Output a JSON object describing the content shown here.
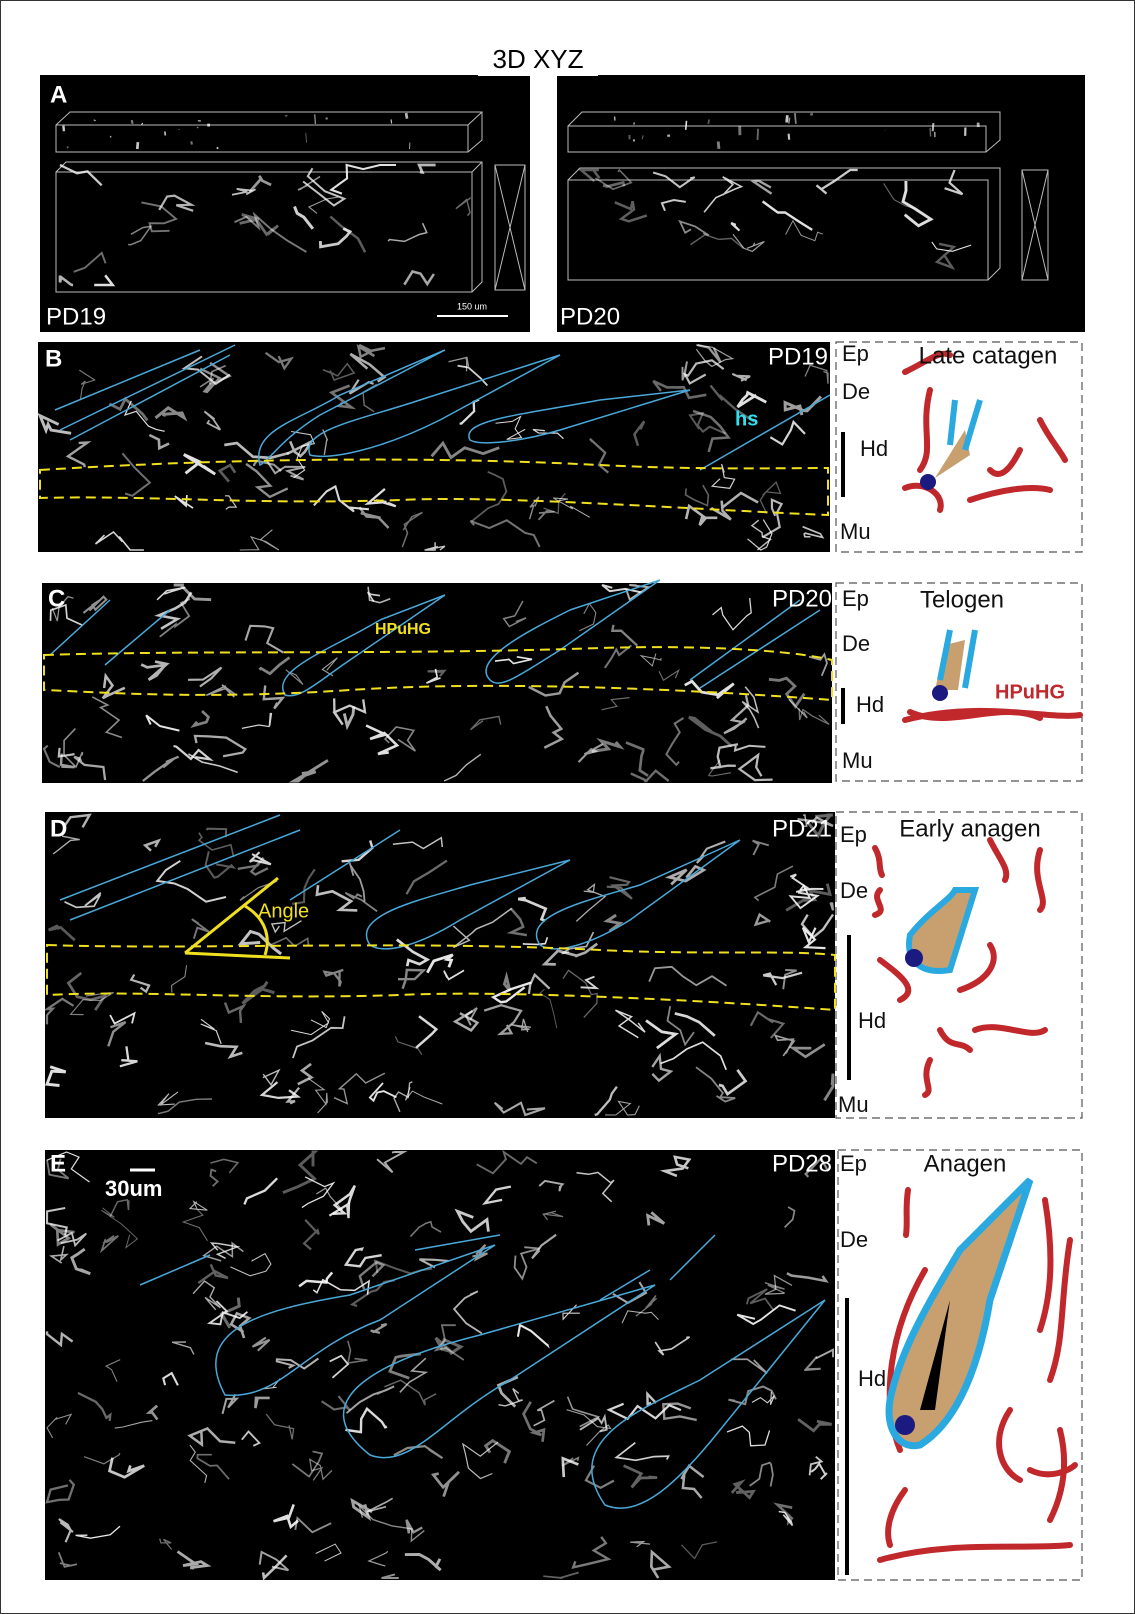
{
  "header": {
    "title": "3D XYZ"
  },
  "panels": [
    {
      "letter": "A",
      "left_label": "PD19",
      "scale_bar": "150 um",
      "right_label": "PD20"
    },
    {
      "letter": "B",
      "image_label": "PD19",
      "annotation": "hs",
      "stage": "Late catagen",
      "layers": [
        "Ep",
        "De",
        "Hd",
        "Mu"
      ]
    },
    {
      "letter": "C",
      "image_label": "PD20",
      "annotation": "HPuHG",
      "stage": "Telogen",
      "schematic_annotation": "HPuHG",
      "layers": [
        "Ep",
        "De",
        "Hd",
        "Mu"
      ]
    },
    {
      "letter": "D",
      "image_label": "PD21",
      "annotation": "Angle",
      "stage": "Early anagen",
      "layers": [
        "Ep",
        "De",
        "Hd",
        "Mu"
      ]
    },
    {
      "letter": "E",
      "image_label": "PD28",
      "scale_bar": "30um",
      "stage": "Anagen",
      "layers": [
        "Ep",
        "De",
        "Hd"
      ]
    }
  ]
}
